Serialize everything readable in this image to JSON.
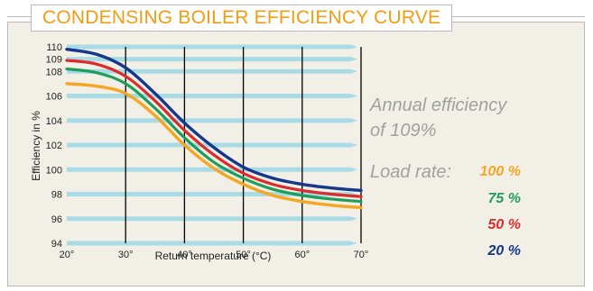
{
  "title": "CONDENSING BOILER EFFICIENCY CURVE",
  "annotation": {
    "line1": "Annual efficiency",
    "line2": "of 109%",
    "load_label": "Load rate:"
  },
  "colors": {
    "l100": "#f5a623",
    "l75": "#1e9e5a",
    "l50": "#dd2a2a",
    "l20": "#15388a",
    "band": "#a9dbe6",
    "panel": "#f2efe6"
  },
  "chart_data": {
    "type": "line",
    "title": "CONDENSING BOILER EFFICIENCY CURVE",
    "xlabel": "Return temperature (°C)",
    "ylabel": "Efficiency in %",
    "xlim": [
      20,
      70
    ],
    "ylim": [
      94,
      110
    ],
    "x_ticks": [
      "20°",
      "30°",
      "40°",
      "50°",
      "60°",
      "70°"
    ],
    "y_ticks": [
      "94",
      "96",
      "98",
      "100",
      "102",
      "104",
      "106",
      "108",
      "109",
      "110"
    ],
    "grid": "vertical lines at 30°, 40°, 50°, 60°, 70°; horizontal bands",
    "x": [
      20,
      25,
      30,
      35,
      40,
      45,
      50,
      55,
      60,
      65,
      70
    ],
    "series": [
      {
        "name": "20 %",
        "color": "#15388a",
        "values": [
          109.8,
          109.4,
          108.3,
          106.2,
          103.8,
          101.8,
          100.2,
          99.3,
          98.8,
          98.5,
          98.3
        ]
      },
      {
        "name": "50 %",
        "color": "#dd2a2a",
        "values": [
          108.9,
          108.6,
          107.6,
          105.6,
          103.2,
          101.2,
          99.7,
          98.8,
          98.3,
          98.0,
          97.8
        ]
      },
      {
        "name": "75 %",
        "color": "#1e9e5a",
        "values": [
          108.2,
          107.9,
          107.0,
          105.0,
          102.6,
          100.6,
          99.3,
          98.4,
          97.9,
          97.6,
          97.4
        ]
      },
      {
        "name": "100 %",
        "color": "#f5a623",
        "values": [
          107.0,
          106.8,
          106.2,
          104.4,
          102.0,
          100.1,
          98.8,
          97.9,
          97.4,
          97.1,
          96.9
        ]
      }
    ],
    "load_rates": [
      {
        "label": "100 %",
        "color": "#f5a623"
      },
      {
        "label": "75 %",
        "color": "#1e9e5a"
      },
      {
        "label": "50 %",
        "color": "#dd2a2a"
      },
      {
        "label": "20 %",
        "color": "#15388a"
      }
    ]
  }
}
